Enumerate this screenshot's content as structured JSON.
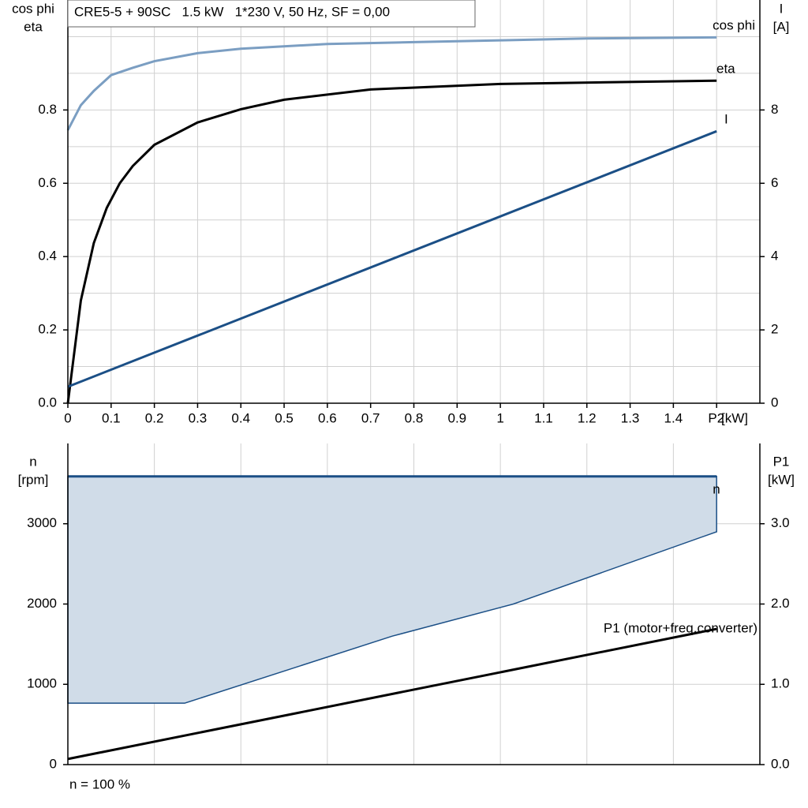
{
  "chart_data": [
    {
      "type": "line",
      "title": "CRE5-5 + 90SC   1.5 kW   1*230 V, 50 Hz, SF = 0,00",
      "y_label": [
        "cos phi",
        "eta"
      ],
      "y2_label": [
        "I",
        "[A]"
      ],
      "x_label": "[kW]",
      "xlim": [
        0,
        1.6
      ],
      "xticks": [
        0,
        0.1,
        0.2,
        0.3,
        0.4,
        0.5,
        0.6,
        0.7,
        0.8,
        0.9,
        1,
        1.1,
        1.2,
        1.3,
        1.4,
        {
          "value": 1.5,
          "label": "P2"
        }
      ],
      "ylim": [
        0,
        1.1
      ],
      "yticks": [
        {
          "value": 0,
          "label": "0.0"
        },
        0.2,
        0.4,
        0.6,
        0.8
      ],
      "ygrid": [
        0.1,
        0.3,
        0.5,
        0.7,
        0.9,
        1.0
      ],
      "y2lim": [
        0,
        11
      ],
      "y2ticks": [
        0,
        2,
        4,
        6,
        8
      ],
      "grid": true,
      "series": [
        {
          "name": "cos phi",
          "color": "#7b9ec2",
          "x": [
            0,
            0.03,
            0.06,
            0.1,
            0.15,
            0.2,
            0.3,
            0.4,
            0.6,
            0.8,
            1.0,
            1.2,
            1.5
          ],
          "values": [
            0.745,
            0.813,
            0.852,
            0.895,
            0.915,
            0.933,
            0.955,
            0.967,
            0.98,
            0.985,
            0.99,
            0.995,
            0.998
          ]
        },
        {
          "name": "eta",
          "color": "#000000",
          "x": [
            0,
            0.03,
            0.06,
            0.09,
            0.12,
            0.15,
            0.2,
            0.3,
            0.4,
            0.5,
            0.7,
            1.0,
            1.5
          ],
          "values": [
            0,
            0.28,
            0.437,
            0.533,
            0.6,
            0.647,
            0.705,
            0.766,
            0.802,
            0.828,
            0.856,
            0.871,
            0.88
          ]
        },
        {
          "name": "I",
          "color": "#1b4f86",
          "axis": "y2",
          "x": [
            0,
            1.5
          ],
          "values": [
            0.45,
            7.42
          ]
        }
      ]
    },
    {
      "type": "area",
      "y_label": [
        "n",
        "[rpm]"
      ],
      "y2_label": [
        "P1",
        "[kW]"
      ],
      "annotation": "n = 100 %",
      "xlim": [
        0,
        1.6
      ],
      "xgrid": [
        0.2,
        0.4,
        0.6,
        0.8,
        1.0,
        1.2,
        1.4
      ],
      "ylim": [
        0,
        4000
      ],
      "yticks": [
        0,
        1000,
        2000,
        3000
      ],
      "y2lim": [
        0,
        4
      ],
      "y2ticks": [
        {
          "value": 0,
          "label": "0.0"
        },
        {
          "value": 1,
          "label": "1.0"
        },
        {
          "value": 2,
          "label": "2.0"
        },
        {
          "value": 3,
          "label": "3.0"
        }
      ],
      "grid": true,
      "series": [
        {
          "name": "n",
          "color": "#1b4f86",
          "fill": "#d0dce8",
          "x": [
            0,
            0.27,
            0.75,
            1.03,
            1.5
          ],
          "values": [
            3590,
            3590,
            3590,
            3590,
            3590
          ],
          "lower": [
            765,
            765,
            1600,
            2000,
            2900
          ]
        },
        {
          "name": "P1 (motor+freq.converter)",
          "color": "#000000",
          "axis": "y2",
          "x": [
            0,
            1.5
          ],
          "values": [
            0.07,
            1.69
          ]
        }
      ]
    }
  ]
}
